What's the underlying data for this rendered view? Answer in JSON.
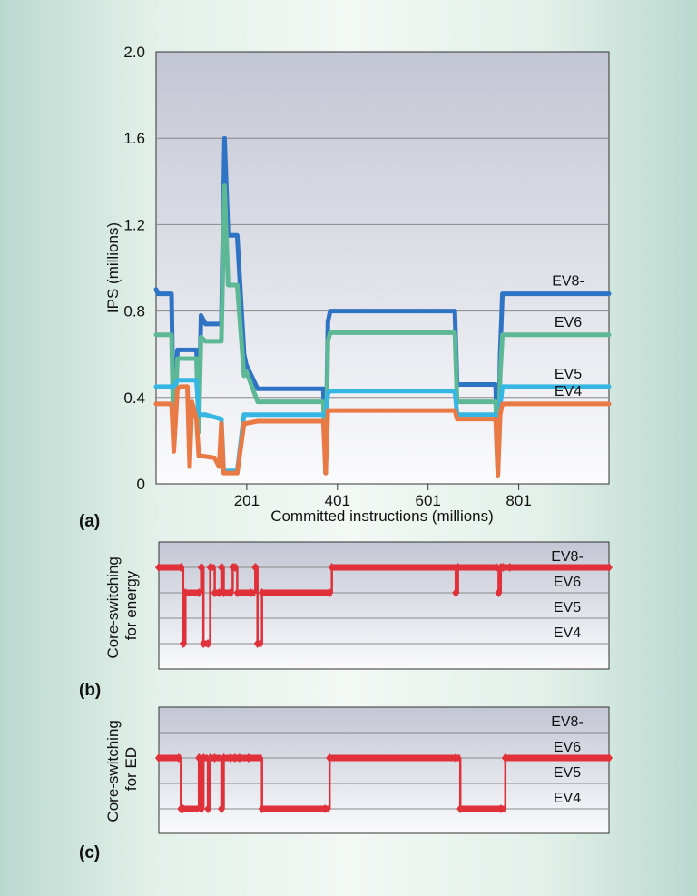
{
  "colors": {
    "ev8": "#2f73c4",
    "ev6": "#5db895",
    "ev5": "#35b6e3",
    "ev4": "#ea7a45",
    "switching": "#e0313a"
  },
  "panel_labels": [
    "(a)",
    "(b)",
    "(c)"
  ],
  "chart_data": [
    {
      "type": "line",
      "panel": "(a)",
      "xlabel": "Committed instructions (millions)",
      "ylabel": "IPS (millions)",
      "xlim": [
        1,
        1000
      ],
      "ylim": [
        0,
        2.0
      ],
      "yticks": [
        "0",
        "0.4",
        "0.8",
        "1.2",
        "1.6",
        "2.0"
      ],
      "xticks": [
        "201",
        "401",
        "601",
        "801"
      ],
      "grid": true,
      "series": [
        {
          "name": "EV8-",
          "color_key": "ev8",
          "x": [
            1,
            5,
            10,
            35,
            40,
            48,
            55,
            90,
            95,
            100,
            110,
            145,
            152,
            160,
            170,
            180,
            195,
            200,
            225,
            230,
            370,
            375,
            380,
            385,
            395,
            660,
            665,
            750,
            755,
            760,
            765,
            775,
            1000
          ],
          "y": [
            0.9,
            0.88,
            0.88,
            0.88,
            0.2,
            0.62,
            0.62,
            0.62,
            0.3,
            0.78,
            0.74,
            0.74,
            1.6,
            1.15,
            1.15,
            1.15,
            0.6,
            0.55,
            0.44,
            0.44,
            0.44,
            0.05,
            0.75,
            0.8,
            0.8,
            0.8,
            0.46,
            0.46,
            0.06,
            0.6,
            0.88,
            0.88,
            0.88
          ]
        },
        {
          "name": "EV6",
          "color_key": "ev6",
          "x": [
            1,
            5,
            35,
            40,
            48,
            55,
            90,
            95,
            100,
            110,
            145,
            152,
            160,
            170,
            180,
            195,
            200,
            225,
            230,
            370,
            375,
            380,
            385,
            395,
            660,
            665,
            750,
            755,
            760,
            765,
            775,
            1000
          ],
          "y": [
            0.69,
            0.69,
            0.69,
            0.18,
            0.58,
            0.58,
            0.58,
            0.24,
            0.68,
            0.66,
            0.66,
            1.38,
            0.92,
            0.92,
            0.92,
            0.5,
            0.52,
            0.38,
            0.38,
            0.38,
            0.05,
            0.66,
            0.7,
            0.7,
            0.7,
            0.38,
            0.38,
            0.05,
            0.5,
            0.69,
            0.69,
            0.69
          ]
        },
        {
          "name": "EV5",
          "color_key": "ev5",
          "x": [
            1,
            35,
            40,
            48,
            55,
            90,
            95,
            110,
            145,
            150,
            160,
            170,
            180,
            195,
            200,
            225,
            230,
            370,
            375,
            380,
            385,
            395,
            660,
            665,
            750,
            755,
            760,
            765,
            1000
          ],
          "y": [
            0.45,
            0.45,
            0.45,
            0.48,
            0.48,
            0.48,
            0.32,
            0.32,
            0.3,
            0.06,
            0.06,
            0.06,
            0.06,
            0.32,
            0.32,
            0.32,
            0.32,
            0.32,
            0.32,
            0.42,
            0.43,
            0.43,
            0.43,
            0.32,
            0.32,
            0.06,
            0.36,
            0.45,
            0.45
          ]
        },
        {
          "name": "EV4",
          "color_key": "ev4",
          "x": [
            1,
            30,
            35,
            40,
            48,
            55,
            62,
            70,
            75,
            80,
            85,
            90,
            95,
            100,
            130,
            140,
            145,
            150,
            160,
            170,
            180,
            195,
            200,
            225,
            230,
            370,
            375,
            380,
            385,
            395,
            660,
            665,
            750,
            755,
            760,
            765,
            1000
          ],
          "y": [
            0.37,
            0.37,
            0.37,
            0.15,
            0.44,
            0.45,
            0.45,
            0.45,
            0.08,
            0.38,
            0.34,
            0.3,
            0.13,
            0.13,
            0.12,
            0.08,
            0.28,
            0.05,
            0.05,
            0.05,
            0.05,
            0.28,
            0.28,
            0.29,
            0.29,
            0.29,
            0.05,
            0.34,
            0.34,
            0.34,
            0.34,
            0.3,
            0.3,
            0.04,
            0.32,
            0.37,
            0.37
          ]
        }
      ]
    },
    {
      "type": "line",
      "panel": "(b)",
      "ylabel": "Core-switching\nfor energy",
      "levels": [
        "EV8-",
        "EV6",
        "EV5",
        "EV4"
      ],
      "xlim": [
        1,
        1000
      ],
      "series": [
        {
          "name": "",
          "color_key": "switching",
          "x": [
            1,
            50,
            55,
            60,
            90,
            95,
            100,
            110,
            115,
            125,
            135,
            140,
            145,
            160,
            165,
            170,
            175,
            205,
            215,
            220,
            230,
            380,
            385,
            660,
            665,
            750,
            755,
            760,
            765,
            780,
            1000
          ],
          "y": [
            "EV8-",
            "EV8-",
            "EV4",
            "EV6",
            "EV6",
            "EV8-",
            "EV4",
            "EV4",
            "EV8-",
            "EV6",
            "EV6",
            "EV8-",
            "EV6",
            "EV6",
            "EV8-",
            "EV8-",
            "EV6",
            "EV6",
            "EV8-",
            "EV4",
            "EV6",
            "EV6",
            "EV8-",
            "EV6",
            "EV8-",
            "EV8-",
            "EV6",
            "EV8-",
            "EV8-",
            "EV8-",
            "EV8-"
          ]
        }
      ]
    },
    {
      "type": "line",
      "panel": "(c)",
      "ylabel": "Core-switching\nfor ED",
      "levels": [
        "EV8-",
        "EV6",
        "EV5",
        "EV4"
      ],
      "xlim": [
        1,
        1000
      ],
      "series": [
        {
          "name": "",
          "color_key": "switching",
          "x": [
            1,
            45,
            50,
            55,
            90,
            95,
            100,
            110,
            115,
            125,
            140,
            145,
            160,
            170,
            180,
            200,
            230,
            370,
            380,
            660,
            670,
            760,
            770,
            1000
          ],
          "y": [
            "EV6",
            "EV6",
            "EV4",
            "EV4",
            "EV6",
            "EV4",
            "EV6",
            "EV4",
            "EV6",
            "EV6",
            "EV4",
            "EV6",
            "EV6",
            "EV6",
            "EV6",
            "EV6",
            "EV4",
            "EV4",
            "EV6",
            "EV6",
            "EV4",
            "EV4",
            "EV6",
            "EV6"
          ]
        }
      ]
    }
  ]
}
